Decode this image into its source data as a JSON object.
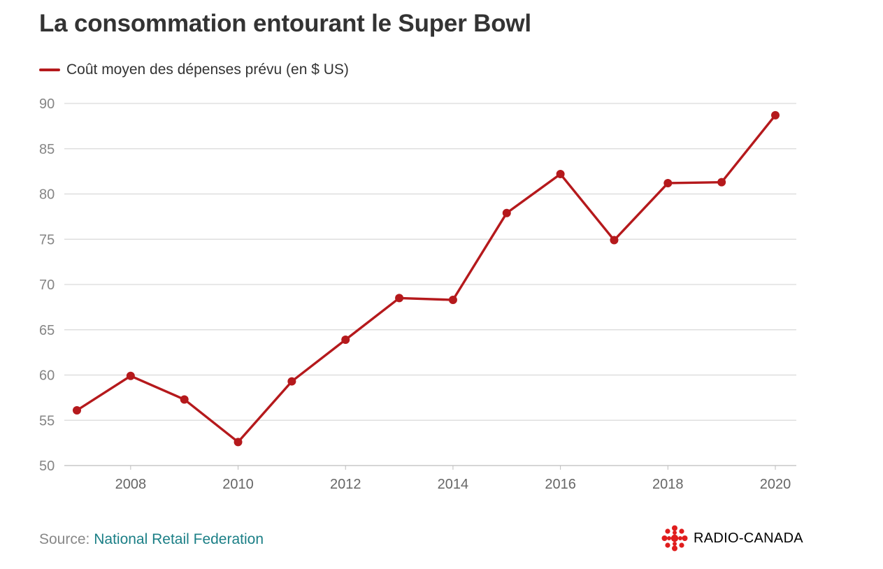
{
  "title": "La consommation entourant le Super Bowl",
  "source": {
    "prefix": "Source: ",
    "link_text": "National Retail Federation"
  },
  "brand": {
    "name": "RADIO-CANADA",
    "logo_icon": "radio-canada-gem-icon",
    "logo_color": "#e01d1d"
  },
  "chart_data": {
    "type": "line",
    "x": [
      2007,
      2008,
      2009,
      2010,
      2011,
      2012,
      2013,
      2014,
      2015,
      2016,
      2017,
      2018,
      2019,
      2020
    ],
    "series": [
      {
        "name": "Coût moyen des dépenses prévu (en $ US)",
        "color": "#b5191c",
        "values": [
          56.1,
          59.9,
          57.3,
          52.6,
          59.3,
          63.9,
          68.5,
          68.3,
          77.9,
          82.2,
          74.9,
          81.2,
          81.3,
          88.7
        ]
      }
    ],
    "xticks": [
      "2008",
      "2010",
      "2012",
      "2014",
      "2016",
      "2018",
      "2020"
    ],
    "yticks": [
      "50",
      "55",
      "60",
      "65",
      "70",
      "75",
      "80",
      "85",
      "90"
    ],
    "xlim": [
      2007,
      2020
    ],
    "ylim": [
      50,
      90
    ],
    "grid": true,
    "legend": "top-left"
  }
}
